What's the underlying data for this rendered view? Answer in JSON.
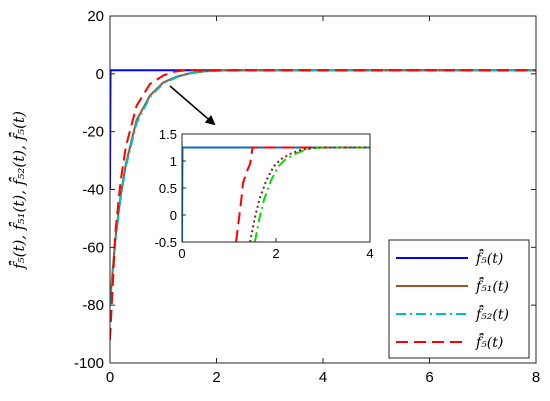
{
  "chart_data": {
    "type": "line",
    "ylabel": "f̄̂₅(t), f̄̂₅₁(t), f̄̂₅₂(t), f̄̂₅(t)",
    "xlabel": "",
    "title": "",
    "xlim": [
      0,
      8
    ],
    "ylim": [
      -100,
      20
    ],
    "xticks": [
      "0",
      "2",
      "4",
      "6",
      "8"
    ],
    "yticks": [
      "20",
      "0",
      "-20",
      "-40",
      "-60",
      "-80",
      "-100"
    ],
    "grid": false,
    "legend_position": "bottom-right",
    "series": [
      {
        "name": "f̄̂₅(t)",
        "color": "#0000ff",
        "style": "solid",
        "x": [
          0,
          0.01,
          8
        ],
        "y": [
          -40,
          1.25,
          1.25
        ]
      },
      {
        "name": "f̄̂₅₁(t)",
        "color": "#a0522d",
        "style": "solid",
        "x": [
          0,
          0.1,
          0.2,
          0.3,
          0.5,
          0.75,
          1.0,
          1.25,
          1.5,
          1.75,
          2.0,
          2.25,
          2.5,
          3.0,
          8
        ],
        "y": [
          -79,
          -57,
          -42,
          -31,
          -16,
          -7.5,
          -3.0,
          -1.0,
          0.2,
          0.8,
          1.1,
          1.2,
          1.25,
          1.25,
          1.25
        ]
      },
      {
        "name": "f̄̂₅₂(t)",
        "color": "#00c0c0",
        "style": "dashdot",
        "x": [
          0,
          0.1,
          0.2,
          0.3,
          0.5,
          0.75,
          1.0,
          1.25,
          1.5,
          1.75,
          2.0,
          2.25,
          2.5,
          3.0,
          8
        ],
        "y": [
          -80,
          -58,
          -43,
          -32,
          -17,
          -8.0,
          -3.3,
          -1.2,
          0.1,
          0.8,
          1.1,
          1.2,
          1.25,
          1.25,
          1.25
        ]
      },
      {
        "name": "f̄̂₅(t)",
        "color": "#ff0000",
        "style": "dashed",
        "x": [
          0,
          0.1,
          0.2,
          0.3,
          0.5,
          0.75,
          1.0,
          1.2,
          1.4,
          1.6,
          8
        ],
        "y": [
          -92,
          -55,
          -37,
          -25,
          -11,
          -3.5,
          -0.6,
          0.7,
          1.2,
          1.25,
          1.25
        ]
      }
    ],
    "inset": {
      "xlim": [
        0,
        4
      ],
      "ylim": [
        -0.5,
        1.5
      ],
      "xticks": [
        "0",
        "2",
        "4"
      ],
      "yticks": [
        "1.5",
        "1",
        "0.5",
        "0",
        "-0.5"
      ],
      "series": [
        {
          "name": "blue",
          "color": "#0072bd",
          "style": "solid",
          "x": [
            0,
            0.01,
            4
          ],
          "y": [
            -0.5,
            1.25,
            1.25
          ]
        },
        {
          "name": "red",
          "color": "#ff0000",
          "style": "dashed",
          "x": [
            1.15,
            1.25,
            1.3,
            1.4,
            1.45,
            1.5,
            4
          ],
          "y": [
            -0.5,
            0.2,
            0.6,
            0.85,
            0.95,
            1.25,
            1.25
          ]
        },
        {
          "name": "green",
          "color": "#00e000",
          "style": "dashdot",
          "x": [
            1.55,
            1.65,
            1.75,
            1.9,
            2.05,
            2.2,
            2.4,
            2.6,
            2.8,
            3.0,
            4
          ],
          "y": [
            -0.5,
            -0.05,
            0.3,
            0.65,
            0.9,
            1.03,
            1.13,
            1.2,
            1.24,
            1.25,
            1.25
          ]
        },
        {
          "name": "darkred",
          "color": "#8b1a1a",
          "style": "dotted",
          "x": [
            1.45,
            1.55,
            1.65,
            1.8,
            1.95,
            2.1,
            2.3,
            2.5,
            2.7,
            2.9,
            3.1,
            4
          ],
          "y": [
            -0.5,
            -0.05,
            0.3,
            0.65,
            0.9,
            1.03,
            1.13,
            1.2,
            1.23,
            1.25,
            1.25,
            1.25
          ]
        }
      ]
    }
  }
}
